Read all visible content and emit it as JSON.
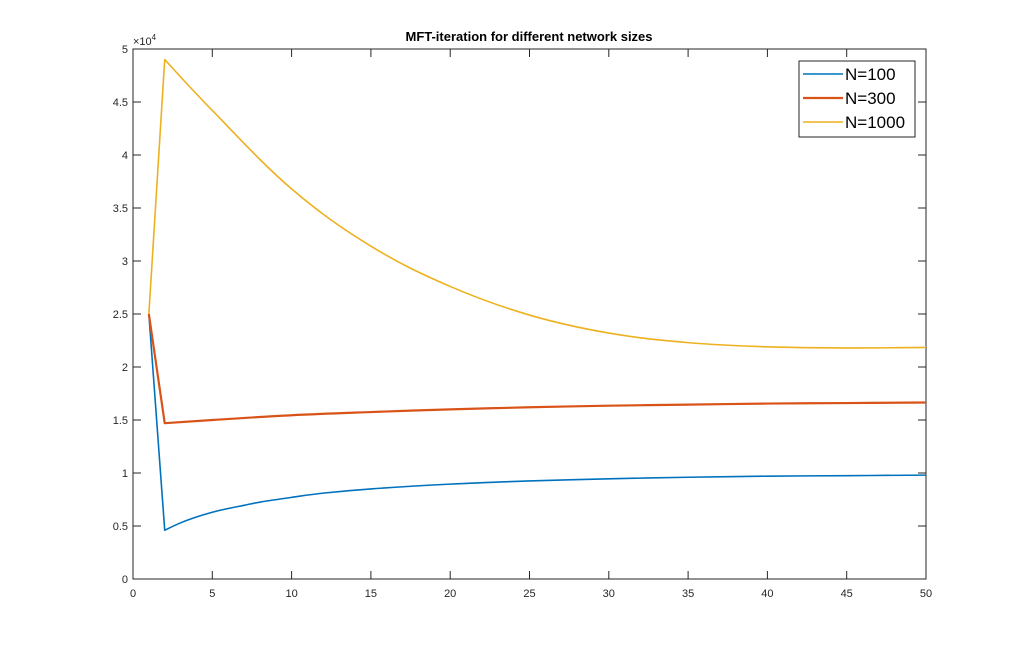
{
  "chart_data": {
    "type": "line",
    "title": "MFT-iteration for different network sizes",
    "xlabel": "",
    "ylabel": "",
    "xlim": [
      0,
      50
    ],
    "ylim": [
      0,
      50000
    ],
    "x_ticks": [
      0,
      5,
      10,
      15,
      20,
      25,
      30,
      35,
      40,
      45,
      50
    ],
    "y_ticks": [
      0,
      5000,
      10000,
      15000,
      20000,
      25000,
      30000,
      35000,
      40000,
      45000,
      50000
    ],
    "y_tick_labels": [
      "0",
      "0.5",
      "1",
      "1.5",
      "2",
      "2.5",
      "3",
      "3.5",
      "4",
      "4.5",
      "5"
    ],
    "y_exponent_label": {
      "base": "×10",
      "power": "4"
    },
    "grid": false,
    "legend_position": "top-right",
    "series": [
      {
        "name": "N=100",
        "color": "#0072BD",
        "x": [
          1,
          2,
          3,
          4,
          5,
          6,
          7,
          8,
          10,
          12,
          15,
          20,
          25,
          30,
          35,
          40,
          45,
          50
        ],
        "values": [
          25000,
          4600,
          5300,
          5850,
          6300,
          6650,
          6950,
          7250,
          7700,
          8100,
          8500,
          8950,
          9250,
          9450,
          9600,
          9700,
          9750,
          9800
        ]
      },
      {
        "name": "N=300",
        "color": "#D95319",
        "x": [
          1,
          2,
          5,
          10,
          15,
          20,
          25,
          30,
          35,
          40,
          45,
          50
        ],
        "values": [
          25000,
          14700,
          15000,
          15450,
          15750,
          16000,
          16200,
          16350,
          16450,
          16550,
          16600,
          16650
        ]
      },
      {
        "name": "N=1000",
        "color": "#EDB120",
        "x": [
          1,
          2,
          5,
          10,
          15,
          20,
          25,
          30,
          35,
          40,
          45,
          50
        ],
        "values": [
          25000,
          49000,
          44200,
          36800,
          31400,
          27600,
          24900,
          23200,
          22300,
          21900,
          21800,
          21850
        ]
      }
    ]
  }
}
